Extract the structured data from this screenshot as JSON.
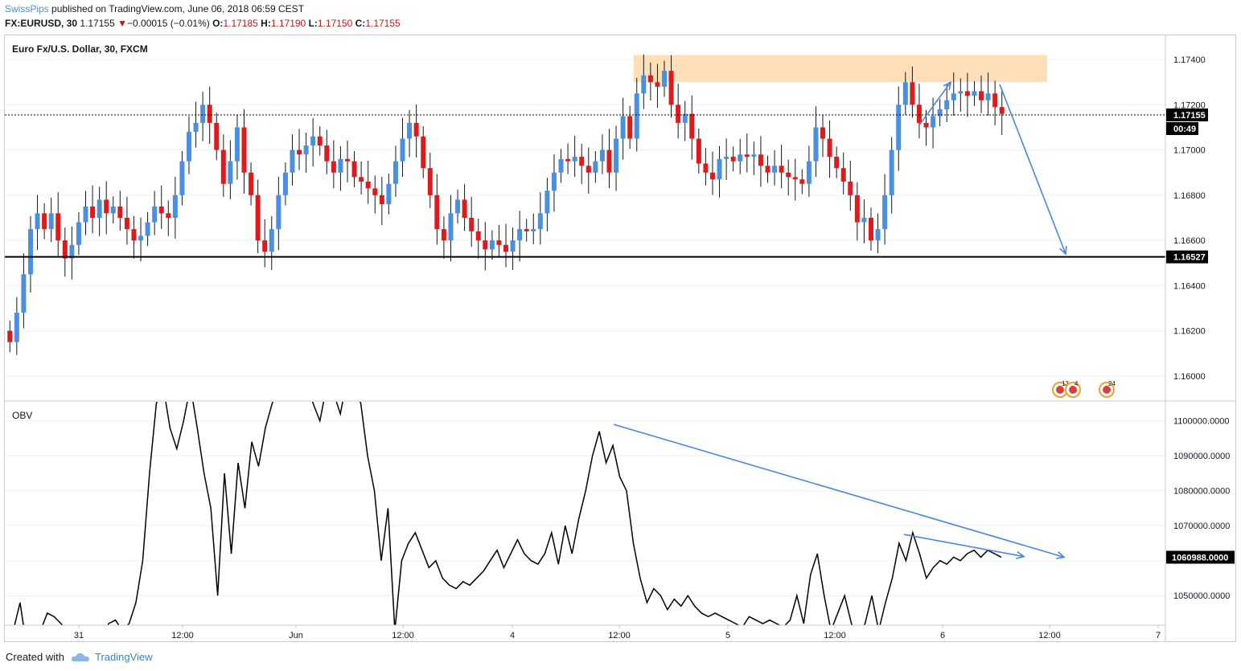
{
  "header": {
    "author": "SwissPips",
    "published": "published on TradingView.com, June 06, 2018 06:59 CEST",
    "symbol": "FX:EURUSD, 30",
    "last": "1.17155",
    "change_arrow": "▼",
    "change": "−0.00015 (−0.01%)",
    "o_label": "O:",
    "o_value": "1.17185",
    "h_label": "H:",
    "h_value": "1.17190",
    "l_label": "L:",
    "l_value": "1.17150",
    "c_label": "C:",
    "c_value": "1.17155"
  },
  "footer": {
    "created_with": "Created with",
    "brand": "TradingView",
    "logo_icon": "tradingview-cloud-icon"
  },
  "colors": {
    "up": "#4a90e2",
    "down": "#e0191b",
    "zone": "#ffd9aa",
    "annotation": "#4a86e0",
    "line": "#000000",
    "grid": "#eef0f3"
  },
  "chart_data": [
    {
      "type": "candlestick",
      "title": "Euro Fx/U.S. Dollar, 30, FXCM",
      "ylim": [
        1.159,
        1.175
      ],
      "yticks": [
        "1.17400",
        "1.17200",
        "1.17000",
        "1.16800",
        "1.16600",
        "1.16400",
        "1.16200",
        "1.16000"
      ],
      "ytick_values": [
        1.174,
        1.172,
        1.17,
        1.168,
        1.166,
        1.164,
        1.162,
        1.16
      ],
      "last_price": {
        "label": "1.17155",
        "value": 1.17155,
        "countdown": "00:49"
      },
      "horizontal_line": {
        "label": "1.16527",
        "value": 1.16527
      },
      "resistance_zone": [
        1.173,
        1.1742
      ],
      "candles_close": [
        1.1615,
        1.1628,
        1.1645,
        1.1665,
        1.1672,
        1.1665,
        1.1672,
        1.166,
        1.1652,
        1.1658,
        1.1668,
        1.1675,
        1.167,
        1.1678,
        1.1672,
        1.1675,
        1.167,
        1.1665,
        1.166,
        1.1662,
        1.1668,
        1.1675,
        1.1672,
        1.167,
        1.168,
        1.1695,
        1.1708,
        1.1712,
        1.172,
        1.1712,
        1.17,
        1.1685,
        1.1695,
        1.171,
        1.169,
        1.168,
        1.166,
        1.1655,
        1.1665,
        1.168,
        1.169,
        1.17,
        1.1698,
        1.1702,
        1.1706,
        1.1702,
        1.1695,
        1.169,
        1.1696,
        1.1695,
        1.1688,
        1.1686,
        1.1683,
        1.168,
        1.1676,
        1.1685,
        1.1695,
        1.1705,
        1.1712,
        1.1706,
        1.1692,
        1.168,
        1.1665,
        1.166,
        1.1672,
        1.1678,
        1.167,
        1.1664,
        1.166,
        1.1656,
        1.166,
        1.1658,
        1.1655,
        1.166,
        1.1665,
        1.1664,
        1.1665,
        1.1672,
        1.1682,
        1.169,
        1.1696,
        1.1695,
        1.1697,
        1.1693,
        1.169,
        1.1695,
        1.17,
        1.169,
        1.1705,
        1.1715,
        1.1705,
        1.1725,
        1.1733,
        1.173,
        1.1728,
        1.1735,
        1.172,
        1.1712,
        1.1716,
        1.1705,
        1.1694,
        1.169,
        1.1687,
        1.1696,
        1.1697,
        1.1695,
        1.1698,
        1.1697,
        1.1698,
        1.1693,
        1.169,
        1.1693,
        1.169,
        1.1688,
        1.1687,
        1.1685,
        1.1695,
        1.171,
        1.1705,
        1.1697,
        1.1692,
        1.1686,
        1.168,
        1.1668,
        1.167,
        1.166,
        1.1665,
        1.168,
        1.17,
        1.172,
        1.173,
        1.172,
        1.1712,
        1.171,
        1.1715,
        1.1718,
        1.1722,
        1.1725,
        1.1726,
        1.1724,
        1.1726,
        1.1722,
        1.1725,
        1.1719,
        1.1716
      ],
      "candles_open": [
        1.162,
        1.1615,
        1.1628,
        1.1645,
        1.1665,
        1.1672,
        1.1665,
        1.1672,
        1.166,
        1.1652,
        1.1658,
        1.1668,
        1.1675,
        1.167,
        1.1678,
        1.1672,
        1.1675,
        1.167,
        1.1665,
        1.166,
        1.1662,
        1.1668,
        1.1675,
        1.1672,
        1.167,
        1.168,
        1.1695,
        1.1708,
        1.1712,
        1.172,
        1.1712,
        1.17,
        1.1685,
        1.1695,
        1.171,
        1.169,
        1.168,
        1.166,
        1.1655,
        1.1665,
        1.168,
        1.169,
        1.17,
        1.1698,
        1.1702,
        1.1706,
        1.1702,
        1.1695,
        1.169,
        1.1696,
        1.1695,
        1.1688,
        1.1686,
        1.1683,
        1.168,
        1.1676,
        1.1685,
        1.1695,
        1.1705,
        1.1712,
        1.1706,
        1.1692,
        1.168,
        1.1665,
        1.166,
        1.1672,
        1.1678,
        1.167,
        1.1664,
        1.166,
        1.1656,
        1.166,
        1.1658,
        1.1655,
        1.166,
        1.1665,
        1.1664,
        1.1665,
        1.1672,
        1.1682,
        1.169,
        1.1696,
        1.1695,
        1.1697,
        1.1693,
        1.169,
        1.1695,
        1.17,
        1.169,
        1.1705,
        1.1715,
        1.1705,
        1.1725,
        1.1733,
        1.173,
        1.1728,
        1.1735,
        1.172,
        1.1712,
        1.1716,
        1.1705,
        1.1694,
        1.169,
        1.1687,
        1.1696,
        1.1697,
        1.1695,
        1.1698,
        1.1697,
        1.1698,
        1.1693,
        1.169,
        1.1693,
        1.169,
        1.1688,
        1.1687,
        1.1685,
        1.1695,
        1.171,
        1.1705,
        1.1697,
        1.1692,
        1.1686,
        1.168,
        1.1668,
        1.167,
        1.166,
        1.1665,
        1.168,
        1.17,
        1.172,
        1.173,
        1.172,
        1.1712,
        1.171,
        1.1715,
        1.1718,
        1.1722,
        1.1725,
        1.1726,
        1.1724,
        1.1726,
        1.1722,
        1.1725,
        1.1719
      ]
    },
    {
      "type": "line",
      "title": "OBV",
      "ylim": [
        1042000,
        1105000
      ],
      "yticks": [
        "1100000.0000",
        "1090000.0000",
        "1080000.0000",
        "1070000.0000",
        "1060000.0000",
        "1050000.0000"
      ],
      "ytick_values": [
        1100000,
        1090000,
        1080000,
        1070000,
        1060000,
        1050000
      ],
      "last_value": {
        "label": "1060988.0000",
        "value": 1060988
      },
      "values": [
        1041000,
        1040000,
        1048000,
        1035000,
        1038000,
        1040000,
        1045000,
        1044000,
        1042000,
        1040000,
        1038000,
        1040000,
        1041000,
        1040000,
        1038000,
        1042000,
        1043000,
        1040000,
        1042000,
        1048000,
        1060000,
        1085000,
        1105000,
        1110000,
        1098000,
        1092000,
        1100000,
        1110000,
        1098000,
        1085000,
        1075000,
        1050000,
        1085000,
        1062000,
        1088000,
        1075000,
        1094000,
        1087000,
        1098000,
        1105000,
        1110000,
        1115000,
        1108000,
        1114000,
        1112000,
        1105000,
        1100000,
        1110000,
        1108000,
        1102000,
        1112000,
        1110000,
        1105000,
        1090000,
        1080000,
        1060000,
        1075000,
        1040000,
        1060000,
        1065000,
        1068000,
        1063000,
        1058000,
        1060000,
        1055000,
        1053000,
        1052000,
        1054000,
        1053000,
        1055000,
        1057000,
        1060000,
        1063000,
        1058000,
        1062000,
        1066000,
        1062000,
        1060000,
        1059000,
        1062000,
        1068000,
        1059000,
        1070000,
        1062000,
        1072000,
        1080000,
        1090000,
        1097000,
        1088000,
        1093000,
        1084000,
        1080000,
        1065000,
        1055000,
        1048000,
        1052000,
        1050000,
        1046000,
        1049000,
        1047000,
        1050000,
        1047000,
        1045000,
        1044000,
        1045000,
        1044000,
        1043000,
        1042000,
        1041000,
        1044000,
        1043000,
        1042000,
        1043000,
        1042000,
        1041000,
        1043000,
        1050000,
        1042000,
        1056000,
        1062000,
        1050000,
        1040000,
        1045000,
        1050000,
        1042000,
        1038000,
        1042000,
        1050000,
        1040000,
        1048000,
        1055000,
        1065000,
        1060000,
        1068000,
        1062000,
        1055000,
        1058000,
        1060000,
        1059000,
        1061000,
        1060000,
        1062000,
        1063000,
        1061000,
        1063000,
        1062000,
        1060988
      ]
    }
  ],
  "xaxis": {
    "labels": [
      "31",
      "12:00",
      "Jun",
      "12:00",
      "4",
      "12:00",
      "5",
      "12:00",
      "6",
      "12:00",
      "7"
    ]
  },
  "events": {
    "badge1": "13",
    "badge2": "4",
    "badge3": "24"
  }
}
